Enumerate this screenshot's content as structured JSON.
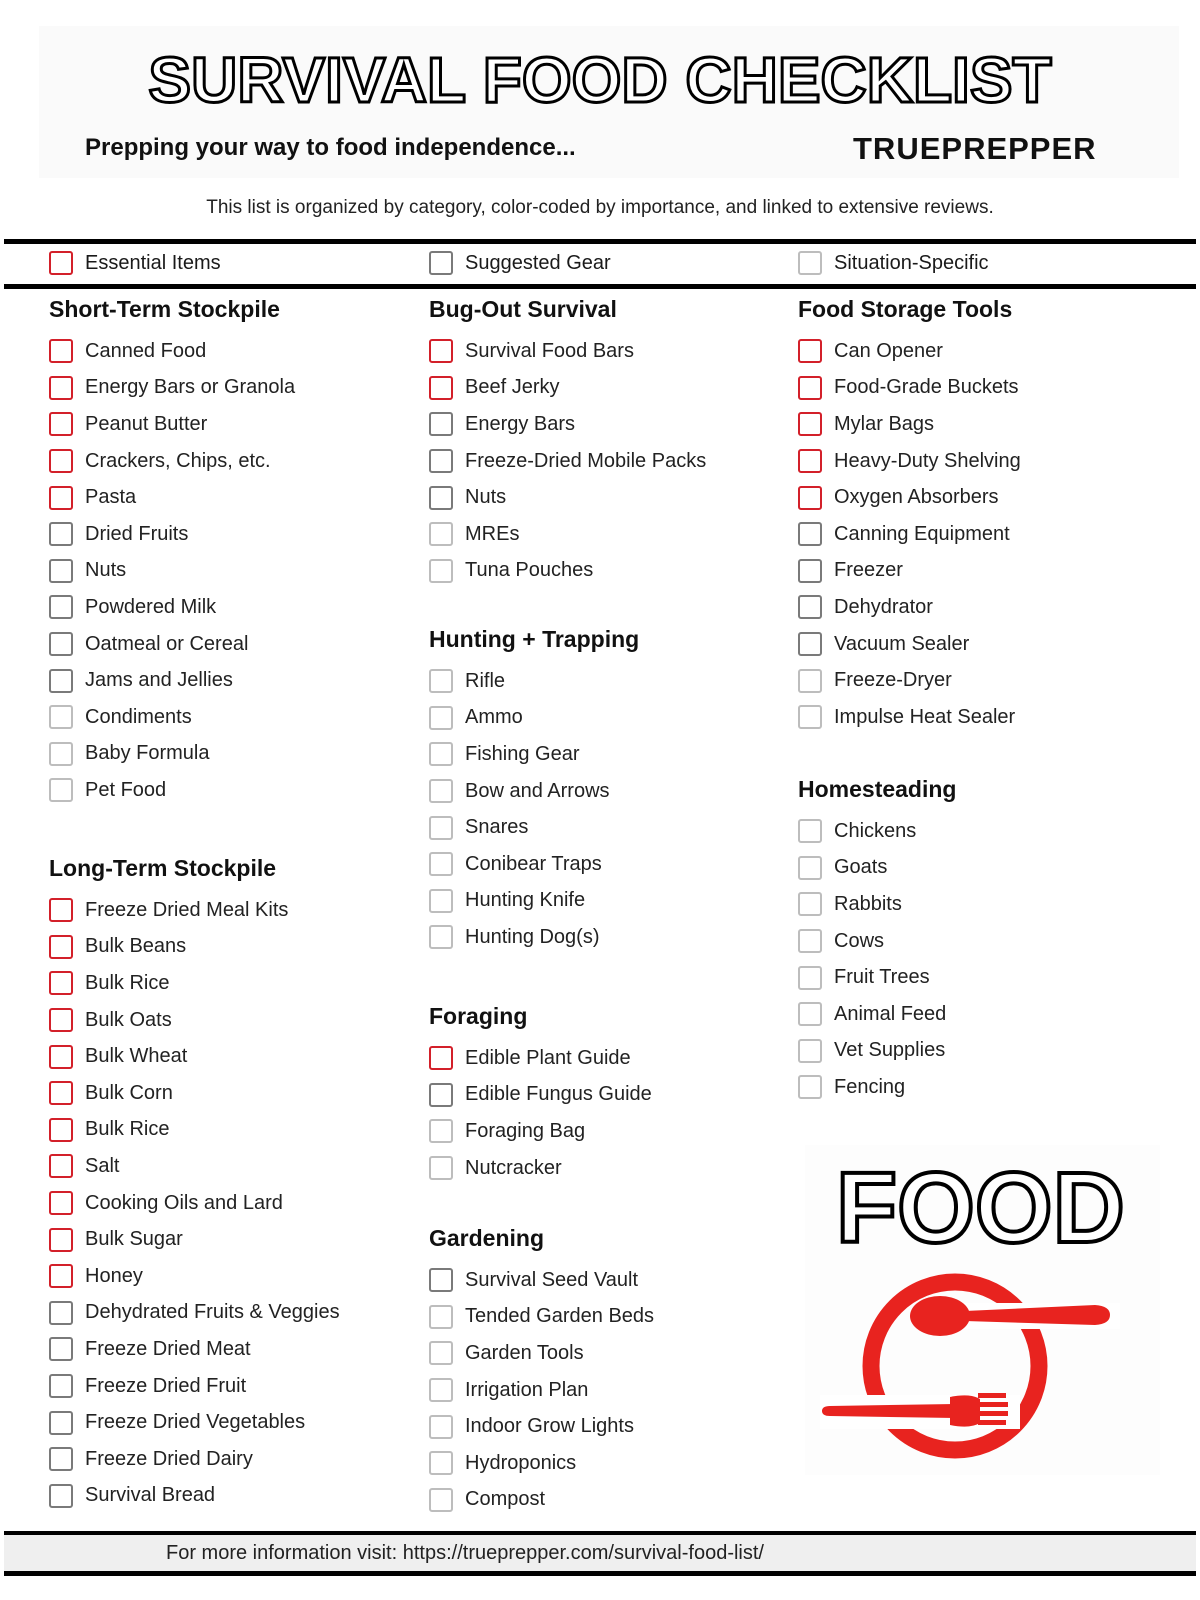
{
  "header": {
    "title": "SURVIVAL FOOD CHECKLIST",
    "subtitle": "Prepping your way to food independence...",
    "brand": "TRUEPREPPER",
    "intro": "This list is organized by category, color-coded by importance, and linked to extensive reviews."
  },
  "colors": {
    "essential": "#d3202a",
    "suggested": "#7a7a7a",
    "situational": "#bdbdbd",
    "logo_red": "#e8231f"
  },
  "legend": [
    {
      "label": "Essential Items",
      "level": "essential"
    },
    {
      "label": "Suggested Gear",
      "level": "suggested"
    },
    {
      "label": "Situation-Specific",
      "level": "situational"
    }
  ],
  "sections": [
    {
      "title": "Short-Term Stockpile",
      "items": [
        {
          "label": "Canned Food",
          "level": "essential"
        },
        {
          "label": "Energy Bars or Granola",
          "level": "essential"
        },
        {
          "label": "Peanut Butter",
          "level": "essential"
        },
        {
          "label": "Crackers, Chips, etc.",
          "level": "essential"
        },
        {
          "label": "Pasta",
          "level": "essential"
        },
        {
          "label": "Dried Fruits",
          "level": "suggested"
        },
        {
          "label": "Nuts",
          "level": "suggested"
        },
        {
          "label": "Powdered Milk",
          "level": "suggested"
        },
        {
          "label": "Oatmeal or Cereal",
          "level": "suggested"
        },
        {
          "label": "Jams and Jellies",
          "level": "suggested"
        },
        {
          "label": "Condiments",
          "level": "situational"
        },
        {
          "label": "Baby Formula",
          "level": "situational"
        },
        {
          "label": "Pet Food",
          "level": "situational"
        }
      ]
    },
    {
      "title": "Long-Term Stockpile",
      "items": [
        {
          "label": "Freeze Dried Meal Kits",
          "level": "essential"
        },
        {
          "label": "Bulk Beans",
          "level": "essential"
        },
        {
          "label": "Bulk Rice",
          "level": "essential"
        },
        {
          "label": "Bulk Oats",
          "level": "essential"
        },
        {
          "label": "Bulk Wheat",
          "level": "essential"
        },
        {
          "label": "Bulk Corn",
          "level": "essential"
        },
        {
          "label": "Bulk Rice",
          "level": "essential"
        },
        {
          "label": "Salt",
          "level": "essential"
        },
        {
          "label": "Cooking Oils and Lard",
          "level": "essential"
        },
        {
          "label": "Bulk Sugar",
          "level": "essential"
        },
        {
          "label": "Honey",
          "level": "essential"
        },
        {
          "label": "Dehydrated Fruits & Veggies",
          "level": "suggested"
        },
        {
          "label": "Freeze Dried Meat",
          "level": "suggested"
        },
        {
          "label": "Freeze Dried Fruit",
          "level": "suggested"
        },
        {
          "label": "Freeze Dried Vegetables",
          "level": "suggested"
        },
        {
          "label": "Freeze Dried Dairy",
          "level": "suggested"
        },
        {
          "label": "Survival Bread",
          "level": "suggested"
        }
      ]
    },
    {
      "title": "Bug-Out Survival",
      "items": [
        {
          "label": "Survival Food Bars",
          "level": "essential"
        },
        {
          "label": "Beef Jerky",
          "level": "essential"
        },
        {
          "label": "Energy Bars",
          "level": "suggested"
        },
        {
          "label": "Freeze-Dried Mobile Packs",
          "level": "suggested"
        },
        {
          "label": "Nuts",
          "level": "suggested"
        },
        {
          "label": "MREs",
          "level": "situational"
        },
        {
          "label": "Tuna Pouches",
          "level": "situational"
        }
      ]
    },
    {
      "title": "Hunting + Trapping",
      "items": [
        {
          "label": "Rifle",
          "level": "situational"
        },
        {
          "label": "Ammo",
          "level": "situational"
        },
        {
          "label": "Fishing Gear",
          "level": "situational"
        },
        {
          "label": "Bow and Arrows",
          "level": "situational"
        },
        {
          "label": "Snares",
          "level": "situational"
        },
        {
          "label": "Conibear Traps",
          "level": "situational"
        },
        {
          "label": "Hunting Knife",
          "level": "situational"
        },
        {
          "label": "Hunting Dog(s)",
          "level": "situational"
        }
      ]
    },
    {
      "title": "Foraging",
      "items": [
        {
          "label": "Edible Plant Guide",
          "level": "essential"
        },
        {
          "label": "Edible Fungus Guide",
          "level": "suggested"
        },
        {
          "label": "Foraging Bag",
          "level": "situational"
        },
        {
          "label": "Nutcracker",
          "level": "situational"
        }
      ]
    },
    {
      "title": "Gardening",
      "items": [
        {
          "label": "Survival Seed Vault",
          "level": "suggested"
        },
        {
          "label": "Tended Garden Beds",
          "level": "situational"
        },
        {
          "label": "Garden Tools",
          "level": "situational"
        },
        {
          "label": "Irrigation Plan",
          "level": "situational"
        },
        {
          "label": "Indoor Grow Lights",
          "level": "situational"
        },
        {
          "label": "Hydroponics",
          "level": "situational"
        },
        {
          "label": "Compost",
          "level": "situational"
        }
      ]
    },
    {
      "title": "Food Storage Tools",
      "items": [
        {
          "label": "Can Opener",
          "level": "essential"
        },
        {
          "label": "Food-Grade Buckets",
          "level": "essential"
        },
        {
          "label": "Mylar Bags",
          "level": "essential"
        },
        {
          "label": "Heavy-Duty Shelving",
          "level": "essential"
        },
        {
          "label": "Oxygen Absorbers",
          "level": "essential"
        },
        {
          "label": "Canning Equipment",
          "level": "suggested"
        },
        {
          "label": "Freezer",
          "level": "suggested"
        },
        {
          "label": "Dehydrator",
          "level": "suggested"
        },
        {
          "label": "Vacuum Sealer",
          "level": "suggested"
        },
        {
          "label": "Freeze-Dryer",
          "level": "situational"
        },
        {
          "label": "Impulse Heat Sealer",
          "level": "situational"
        }
      ]
    },
    {
      "title": "Homesteading",
      "items": [
        {
          "label": "Chickens",
          "level": "situational"
        },
        {
          "label": "Goats",
          "level": "situational"
        },
        {
          "label": "Rabbits",
          "level": "situational"
        },
        {
          "label": "Cows",
          "level": "situational"
        },
        {
          "label": "Fruit Trees",
          "level": "situational"
        },
        {
          "label": "Animal Feed",
          "level": "situational"
        },
        {
          "label": "Vet Supplies",
          "level": "situational"
        },
        {
          "label": "Fencing",
          "level": "situational"
        }
      ]
    }
  ],
  "logo": {
    "word": "FOOD",
    "icon": "plate-spoon-fork-icon"
  },
  "footer": {
    "text": "For more information visit:  https://trueprepper.com/survival-food-list/"
  }
}
